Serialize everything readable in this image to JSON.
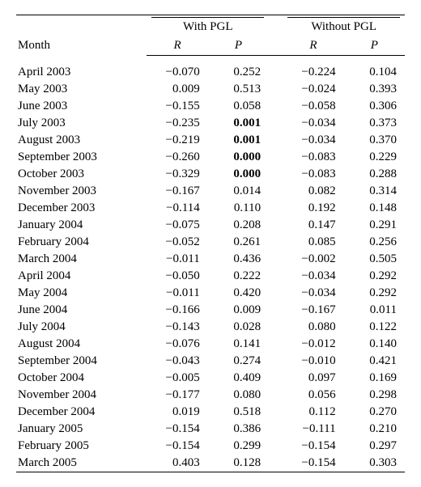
{
  "table": {
    "type": "table",
    "font_family": "Times New Roman",
    "font_size_pt": 11,
    "background_color": "#ffffff",
    "text_color": "#000000",
    "rule_color": "#000000",
    "header": {
      "month_label": "Month",
      "group1": "With PGL",
      "group2": "Without PGL",
      "sub_R": "R",
      "sub_P": "P"
    },
    "columns": [
      "Month",
      "With PGL R",
      "With PGL P",
      "Without PGL R",
      "Without PGL P"
    ],
    "bold_rows": [
      3,
      4,
      5,
      6
    ],
    "bold_col": 2,
    "rows": [
      {
        "month": "April 2003",
        "r1": "−0.070",
        "p1": "0.252",
        "r2": "−0.224",
        "p2": "0.104"
      },
      {
        "month": "May 2003",
        "r1": "0.009",
        "p1": "0.513",
        "r2": "−0.024",
        "p2": "0.393"
      },
      {
        "month": "June 2003",
        "r1": "−0.155",
        "p1": "0.058",
        "r2": "−0.058",
        "p2": "0.306"
      },
      {
        "month": "July 2003",
        "r1": "−0.235",
        "p1": "0.001",
        "r2": "−0.034",
        "p2": "0.373"
      },
      {
        "month": "August 2003",
        "r1": "−0.219",
        "p1": "0.001",
        "r2": "−0.034",
        "p2": "0.370"
      },
      {
        "month": "September 2003",
        "r1": "−0.260",
        "p1": "0.000",
        "r2": "−0.083",
        "p2": "0.229"
      },
      {
        "month": "October 2003",
        "r1": "−0.329",
        "p1": "0.000",
        "r2": "−0.083",
        "p2": "0.288"
      },
      {
        "month": "November 2003",
        "r1": "−0.167",
        "p1": "0.014",
        "r2": "0.082",
        "p2": "0.314"
      },
      {
        "month": "December 2003",
        "r1": "−0.114",
        "p1": "0.110",
        "r2": "0.192",
        "p2": "0.148"
      },
      {
        "month": "January 2004",
        "r1": "−0.075",
        "p1": "0.208",
        "r2": "0.147",
        "p2": "0.291"
      },
      {
        "month": "February 2004",
        "r1": "−0.052",
        "p1": "0.261",
        "r2": "0.085",
        "p2": "0.256"
      },
      {
        "month": "March 2004",
        "r1": "−0.011",
        "p1": "0.436",
        "r2": "−0.002",
        "p2": "0.505"
      },
      {
        "month": "April 2004",
        "r1": "−0.050",
        "p1": "0.222",
        "r2": "−0.034",
        "p2": "0.292"
      },
      {
        "month": "May 2004",
        "r1": "−0.011",
        "p1": "0.420",
        "r2": "−0.034",
        "p2": "0.292"
      },
      {
        "month": "June 2004",
        "r1": "−0.166",
        "p1": "0.009",
        "r2": "−0.167",
        "p2": "0.011"
      },
      {
        "month": "July 2004",
        "r1": "−0.143",
        "p1": "0.028",
        "r2": "0.080",
        "p2": "0.122"
      },
      {
        "month": "August 2004",
        "r1": "−0.076",
        "p1": "0.141",
        "r2": "−0.012",
        "p2": "0.140"
      },
      {
        "month": "September 2004",
        "r1": "−0.043",
        "p1": "0.274",
        "r2": "−0.010",
        "p2": "0.421"
      },
      {
        "month": "October 2004",
        "r1": "−0.005",
        "p1": "0.409",
        "r2": "0.097",
        "p2": "0.169"
      },
      {
        "month": "November 2004",
        "r1": "−0.177",
        "p1": "0.080",
        "r2": "0.056",
        "p2": "0.298"
      },
      {
        "month": "December 2004",
        "r1": "0.019",
        "p1": "0.518",
        "r2": "0.112",
        "p2": "0.270"
      },
      {
        "month": "January 2005",
        "r1": "−0.154",
        "p1": "0.386",
        "r2": "−0.111",
        "p2": "0.210"
      },
      {
        "month": "February 2005",
        "r1": "−0.154",
        "p1": "0.299",
        "r2": "−0.154",
        "p2": "0.297"
      },
      {
        "month": "March 2005",
        "r1": "0.403",
        "p1": "0.128",
        "r2": "−0.154",
        "p2": "0.303"
      }
    ]
  }
}
